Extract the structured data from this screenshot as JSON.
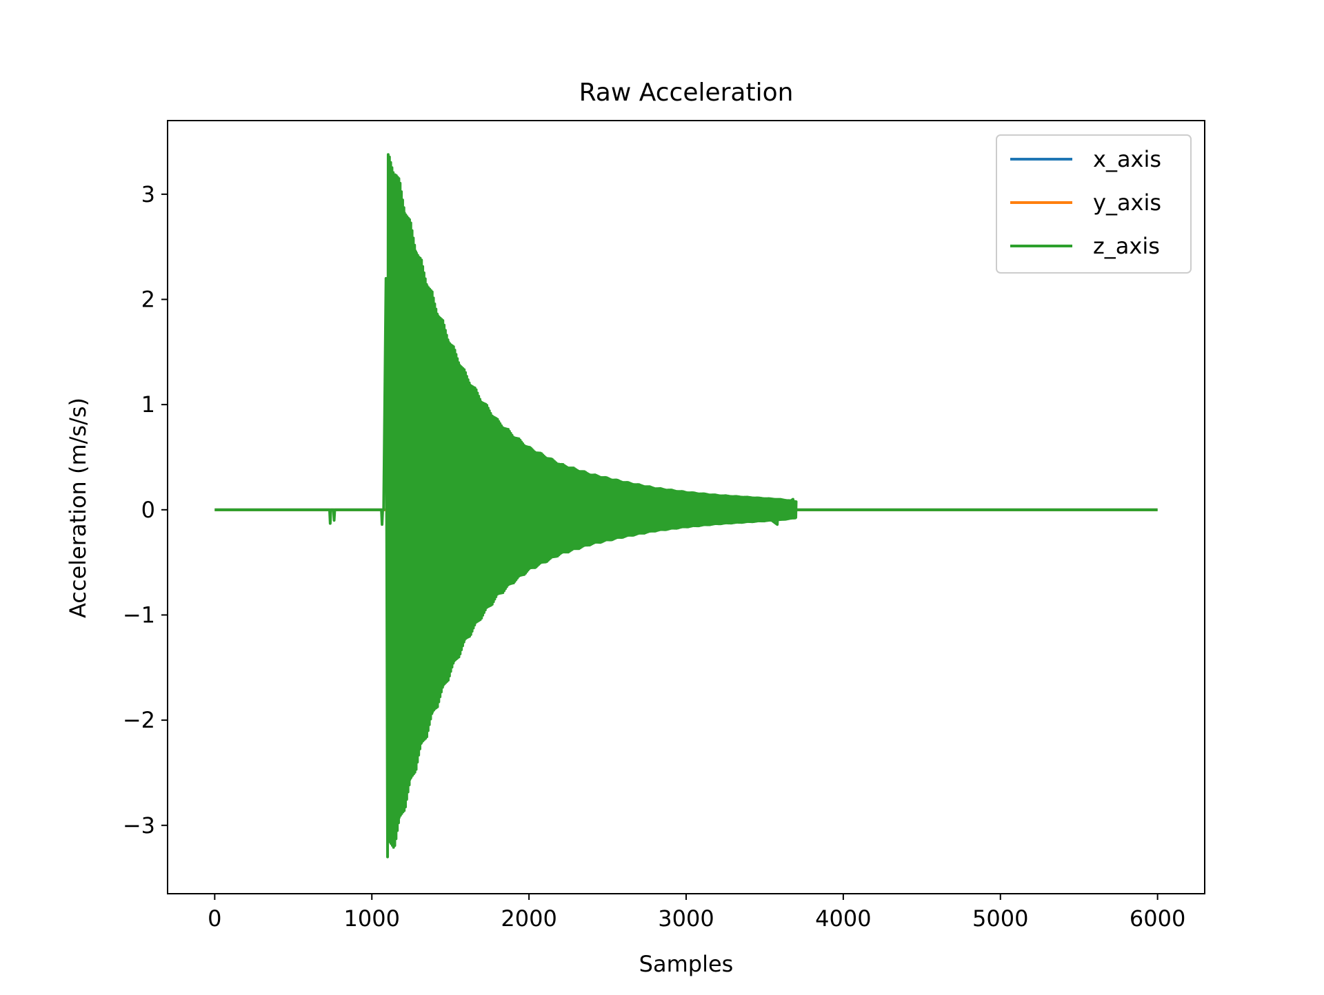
{
  "chart_data": {
    "type": "line",
    "title": "Raw Acceleration",
    "xlabel": "Samples",
    "ylabel": "Acceleration (m/s/s)",
    "xlim": [
      -300,
      6300
    ],
    "ylim": [
      -3.65,
      3.7
    ],
    "xticks": [
      0,
      1000,
      2000,
      3000,
      4000,
      5000,
      6000
    ],
    "xtick_labels": [
      "0",
      "1000",
      "2000",
      "3000",
      "4000",
      "5000",
      "6000"
    ],
    "yticks": [
      3,
      2,
      1,
      0,
      -1,
      -2,
      -3
    ],
    "ytick_labels": [
      "3",
      "2",
      "1",
      "0",
      "−1",
      "−2",
      "−3"
    ],
    "grid": false,
    "legend_position": "top-right",
    "series": [
      {
        "name": "x_axis",
        "color": "#1f77b4",
        "x": [
          0,
          6000
        ],
        "y": [
          0,
          0
        ]
      },
      {
        "name": "y_axis",
        "color": "#ff7f0e",
        "x": [
          0,
          6000
        ],
        "y": [
          0,
          0
        ]
      },
      {
        "name": "z_axis",
        "color": "#2ca02c",
        "x_range": [
          0,
          6000
        ],
        "onset_sample": 1075,
        "peak_sample": 1110,
        "peak_value": 3.4,
        "min_value": -3.3,
        "decay_end_sample": 3700,
        "envelope": [
          [
            1100,
            3.4
          ],
          [
            1150,
            3.3
          ],
          [
            1200,
            3.0
          ],
          [
            1300,
            2.45
          ],
          [
            1400,
            2.0
          ],
          [
            1500,
            1.62
          ],
          [
            1600,
            1.3
          ],
          [
            1700,
            1.06
          ],
          [
            1800,
            0.86
          ],
          [
            1900,
            0.72
          ],
          [
            2000,
            0.6
          ],
          [
            2200,
            0.44
          ],
          [
            2400,
            0.34
          ],
          [
            2600,
            0.27
          ],
          [
            2800,
            0.21
          ],
          [
            3000,
            0.17
          ],
          [
            3200,
            0.14
          ],
          [
            3400,
            0.12
          ],
          [
            3600,
            0.1
          ],
          [
            3700,
            0.08
          ]
        ]
      }
    ]
  }
}
